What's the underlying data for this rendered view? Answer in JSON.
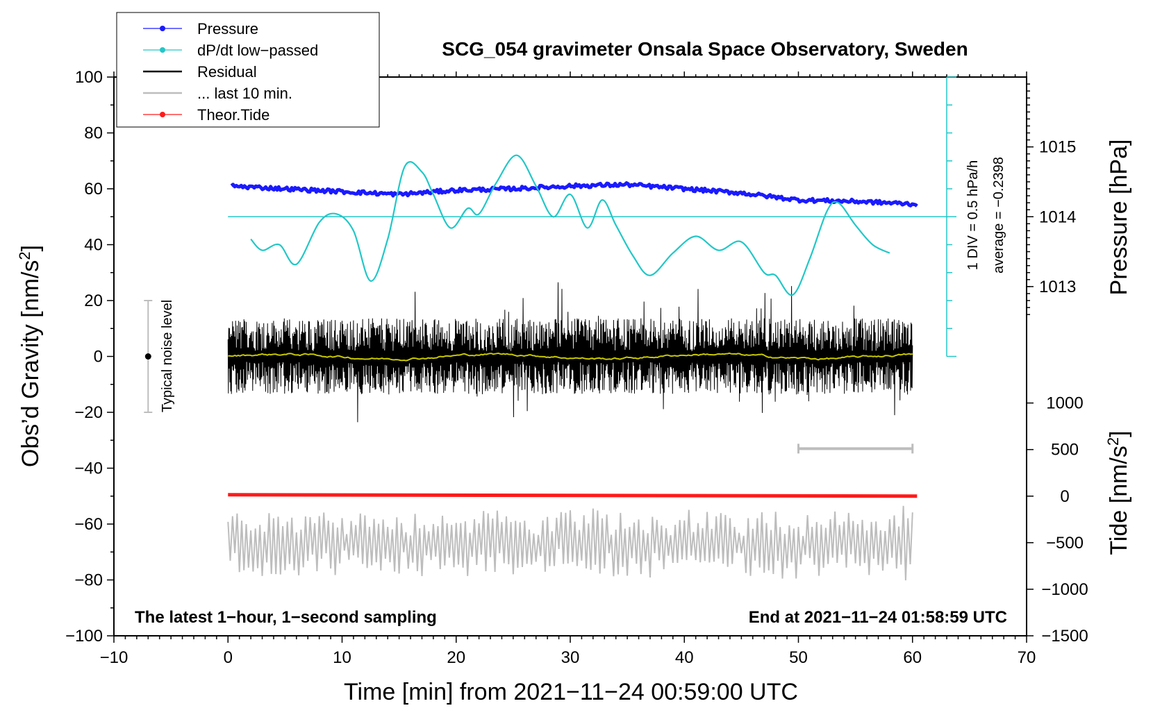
{
  "chart_data": {
    "type": "line",
    "title": "SCG_054 gravimeter Onsala Space Observatory, Sweden",
    "xlabel": "Time [min] from 2021−11−24 00:59:00 UTC",
    "ylabel_left": "Obs’d Gravity [nm/s",
    "ylabel_left_sup": "2",
    "ylabel_left_close": "]",
    "ylabel_pressure": "Pressure [hPa]",
    "ylabel_tide": "Tide [nm/s",
    "ylabel_tide_sup": "2",
    "ylabel_tide_close": "]",
    "xlim": [
      -10,
      70
    ],
    "ylim": [
      -100,
      100
    ],
    "x_ticks": [
      -10,
      0,
      10,
      20,
      30,
      40,
      50,
      60,
      70
    ],
    "x_tick_labels": [
      "−10",
      "0",
      "10",
      "20",
      "30",
      "40",
      "50",
      "60",
      "70"
    ],
    "y_ticks": [
      -100,
      -80,
      -60,
      -40,
      -20,
      0,
      20,
      40,
      60,
      80,
      100
    ],
    "y_tick_labels": [
      "−100",
      "−80",
      "−60",
      "−40",
      "−20",
      "0",
      "20",
      "40",
      "60",
      "80",
      "100"
    ],
    "pressure_axis": {
      "ticks": [
        1013,
        1014,
        1015
      ],
      "tick_labels": [
        "1013",
        "1014",
        "1015"
      ],
      "gravity_at_1013": 25,
      "gravity_per_hPa": 25
    },
    "tide_axis": {
      "ticks": [
        1000,
        500,
        0,
        -500,
        -1000,
        -1500
      ],
      "tick_labels": [
        "1000",
        "500",
        "0",
        "−500",
        "−1000",
        "−1500"
      ],
      "gravity_at_0": -50,
      "gravity_per_unit": 0.03333
    },
    "annotations": {
      "bottom_left": "The latest 1−hour, 1−second sampling",
      "bottom_right": "End at 2021−11−24 01:58:59 UTC",
      "noise_label": "Typical noise level",
      "ddiv_label": "1 DIV = 0.5 hPa/h",
      "average_label": "average = −0.2398"
    },
    "noise_bar": {
      "x": -7,
      "y_low": -20,
      "y_high": 20,
      "y_center": 0
    },
    "last10_bar": {
      "x_start": 50,
      "x_end": 60,
      "y": -33
    },
    "dpdt_scale": {
      "baseline": 50,
      "x": 63,
      "y_bottom": 0,
      "y_top": 100,
      "divisions": 10
    },
    "legend": [
      {
        "label": "Pressure",
        "color": "#1a1aff",
        "style": "line-dot"
      },
      {
        "label": "dP/dt low−passed",
        "color": "#22c7c7",
        "style": "line-dot"
      },
      {
        "label": "Residual",
        "color": "#000000",
        "style": "line"
      },
      {
        "label": "... last 10 min.",
        "color": "#bdbdbd",
        "style": "line"
      },
      {
        "label": "Theor.Tide",
        "color": "#ff1a1a",
        "style": "line-dot"
      }
    ],
    "series": [
      {
        "name": "Pressure",
        "color": "#1a1aff",
        "x": [
          0.3,
          5,
          10,
          15,
          20,
          25,
          30,
          35,
          40,
          45,
          50,
          55,
          60.4
        ],
        "y": [
          61,
          60,
          59,
          58,
          59.5,
          60,
          61,
          61.5,
          60,
          58.5,
          56,
          55.5,
          54.5
        ]
      },
      {
        "name": "dP/dt low-passed",
        "color": "#22c7c7",
        "x": [
          2,
          3,
          4.5,
          6,
          8,
          9.5,
          11,
          12.5,
          14,
          15.5,
          17,
          18,
          19.5,
          21,
          22,
          23.5,
          25.3,
          27,
          28.5,
          30,
          31.5,
          32.8,
          34,
          35.5,
          37,
          39,
          41,
          43,
          45,
          47,
          48,
          49.5,
          51,
          52.5,
          53.5,
          55,
          56.5,
          58
        ],
        "y": [
          42,
          38,
          40,
          33,
          48,
          51,
          45,
          27,
          42,
          68,
          66,
          58,
          46,
          53,
          51,
          62,
          72,
          61,
          50,
          58,
          46,
          56,
          47,
          36,
          29,
          37,
          43,
          38,
          41,
          30,
          29,
          22,
          35,
          52,
          55,
          47,
          40,
          37
        ]
      },
      {
        "name": "Residual",
        "color": "#000000",
        "x": [
          0,
          60
        ],
        "amplitude": 13,
        "baseline": 0
      },
      {
        "name": "Residual mean",
        "color": "#c8c800",
        "x": [
          0,
          60
        ],
        "baseline": 0
      },
      {
        "name": "... last 10 min.",
        "color": "#bdbdbd",
        "x": [
          0,
          60
        ],
        "baseline": -67,
        "amplitude": 9
      },
      {
        "name": "Theor.Tide",
        "color": "#ff1a1a",
        "x": [
          0,
          60.4
        ],
        "y": [
          -49.5,
          -50
        ]
      }
    ]
  }
}
